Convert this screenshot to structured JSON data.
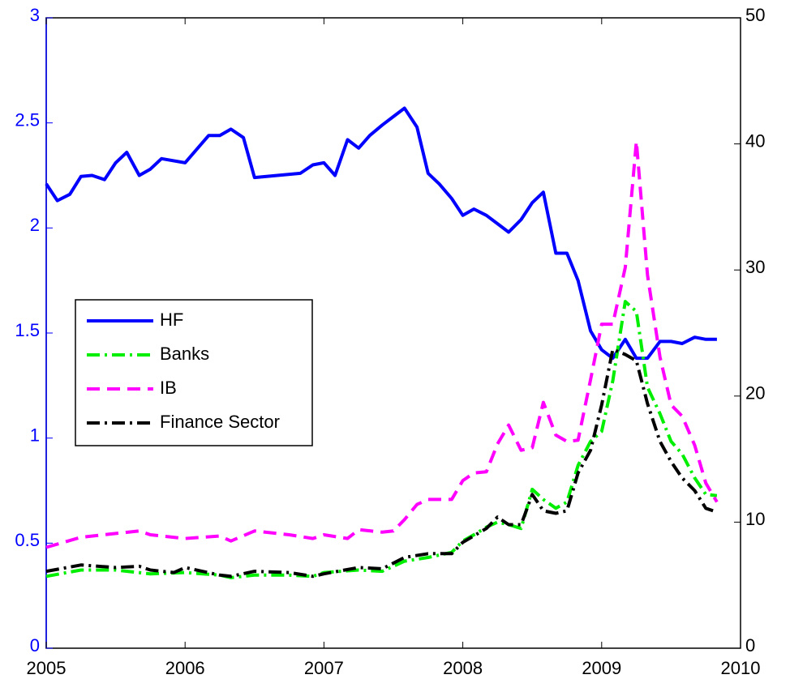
{
  "chart_data": {
    "type": "line",
    "xlim": [
      2005,
      2010
    ],
    "xticks": [
      2005,
      2006,
      2007,
      2008,
      2009,
      2010
    ],
    "ylim": [
      0,
      3
    ],
    "yticks": [
      0,
      0.5,
      1,
      1.5,
      2,
      2.5,
      3
    ],
    "y_axis_color": "#0000ff",
    "y2lim": [
      0,
      50
    ],
    "y2ticks": [
      0,
      10,
      20,
      30,
      40,
      50
    ],
    "grid": false,
    "legend": "center-left",
    "series": [
      {
        "name": "HF",
        "color": "#0000ff",
        "linestyle": "solid",
        "x": [
          2005.0,
          2005.08,
          2005.17,
          2005.25,
          2005.33,
          2005.42,
          2005.5,
          2005.58,
          2005.67,
          2005.75,
          2005.83,
          2006.0,
          2006.17,
          2006.25,
          2006.33,
          2006.42,
          2006.5,
          2006.83,
          2006.92,
          2007.0,
          2007.08,
          2007.17,
          2007.25,
          2007.33,
          2007.42,
          2007.5,
          2007.58,
          2007.67,
          2007.75,
          2007.83,
          2007.92,
          2008.0,
          2008.08,
          2008.17,
          2008.25,
          2008.33,
          2008.42,
          2008.5,
          2008.58,
          2008.67,
          2008.75,
          2008.83,
          2008.92,
          2009.0,
          2009.08,
          2009.17,
          2009.25,
          2009.33,
          2009.42,
          2009.5,
          2009.58,
          2009.67,
          2009.75,
          2009.83
        ],
        "values": [
          2.21,
          2.13,
          2.16,
          2.245,
          2.25,
          2.23,
          2.31,
          2.36,
          2.25,
          2.28,
          2.33,
          2.31,
          2.44,
          2.44,
          2.47,
          2.43,
          2.24,
          2.26,
          2.3,
          2.31,
          2.25,
          2.42,
          2.38,
          2.44,
          2.49,
          2.53,
          2.57,
          2.48,
          2.26,
          2.21,
          2.14,
          2.06,
          2.09,
          2.06,
          2.02,
          1.98,
          2.04,
          2.12,
          2.17,
          1.88,
          1.88,
          1.75,
          1.51,
          1.42,
          1.38,
          1.47,
          1.38,
          1.38,
          1.46,
          1.46,
          1.45,
          1.48,
          1.47,
          1.47
        ]
      },
      {
        "name": "Banks",
        "color": "#00ee00",
        "linestyle": "dashdot",
        "axis": "y2",
        "x": [
          2005.0,
          2005.25,
          2005.5,
          2005.75,
          2006.0,
          2006.25,
          2006.33,
          2006.5,
          2006.75,
          2006.92,
          2007.0,
          2007.25,
          2007.42,
          2007.58,
          2007.75,
          2007.92,
          2008.0,
          2008.08,
          2008.17,
          2008.25,
          2008.33,
          2008.42,
          2008.5,
          2008.58,
          2008.67,
          2008.75,
          2008.83,
          2008.92,
          2009.0,
          2009.08,
          2009.17,
          2009.25,
          2009.33,
          2009.42,
          2009.5,
          2009.58,
          2009.67,
          2009.75,
          2009.83
        ],
        "values": [
          5.7,
          6.2,
          6.2,
          5.9,
          6.0,
          5.8,
          5.6,
          5.8,
          5.8,
          5.7,
          6.0,
          6.2,
          6.1,
          6.9,
          7.2,
          7.6,
          8.5,
          9.0,
          9.6,
          10.0,
          9.8,
          9.5,
          12.6,
          11.8,
          11.1,
          11.6,
          14.5,
          16.4,
          17.2,
          21.2,
          27.5,
          26.7,
          20.7,
          18.6,
          16.4,
          15.4,
          13.5,
          12.2,
          12.1
        ]
      },
      {
        "name": "IB",
        "color": "#ff00ff",
        "linestyle": "dashed",
        "axis": "y2",
        "x": [
          2005.0,
          2005.25,
          2005.5,
          2005.67,
          2005.75,
          2006.0,
          2006.25,
          2006.33,
          2006.5,
          2006.75,
          2006.92,
          2007.0,
          2007.17,
          2007.25,
          2007.42,
          2007.5,
          2007.58,
          2007.67,
          2007.75,
          2007.92,
          2008.0,
          2008.08,
          2008.17,
          2008.25,
          2008.33,
          2008.42,
          2008.5,
          2008.58,
          2008.67,
          2008.75,
          2008.83,
          2008.92,
          2009.0,
          2009.08,
          2009.17,
          2009.25,
          2009.33,
          2009.42,
          2009.5,
          2009.58,
          2009.67,
          2009.75,
          2009.83
        ],
        "values": [
          8.0,
          8.8,
          9.1,
          9.3,
          9.0,
          8.7,
          8.9,
          8.5,
          9.3,
          9.0,
          8.7,
          9.0,
          8.7,
          9.4,
          9.2,
          9.3,
          10.2,
          11.4,
          11.8,
          11.8,
          13.3,
          13.9,
          14.0,
          16.2,
          17.7,
          15.7,
          15.9,
          19.5,
          16.9,
          16.4,
          16.5,
          21.3,
          25.7,
          25.7,
          30.2,
          40.2,
          29.6,
          23.1,
          19.3,
          18.4,
          16.1,
          13.1,
          11.6
        ]
      },
      {
        "name": "Finance Sector",
        "color": "#000000",
        "linestyle": "dashdot",
        "axis": "y2",
        "x": [
          2005.0,
          2005.25,
          2005.5,
          2005.67,
          2005.75,
          2005.92,
          2006.0,
          2006.25,
          2006.33,
          2006.5,
          2006.75,
          2006.92,
          2007.0,
          2007.25,
          2007.42,
          2007.58,
          2007.75,
          2007.92,
          2008.0,
          2008.17,
          2008.25,
          2008.33,
          2008.42,
          2008.5,
          2008.58,
          2008.67,
          2008.75,
          2008.83,
          2008.92,
          2009.0,
          2009.08,
          2009.17,
          2009.25,
          2009.33,
          2009.42,
          2009.5,
          2009.58,
          2009.67,
          2009.75,
          2009.83
        ],
        "values": [
          6.1,
          6.6,
          6.4,
          6.5,
          6.2,
          6.0,
          6.4,
          5.8,
          5.7,
          6.1,
          6.0,
          5.7,
          5.9,
          6.4,
          6.3,
          7.2,
          7.5,
          7.5,
          8.4,
          9.5,
          10.4,
          9.8,
          9.8,
          12.2,
          10.9,
          10.7,
          10.9,
          13.9,
          15.7,
          19.3,
          23.7,
          23.3,
          22.8,
          19.4,
          16.4,
          14.8,
          13.5,
          12.5,
          11.1,
          10.8
        ]
      }
    ]
  }
}
